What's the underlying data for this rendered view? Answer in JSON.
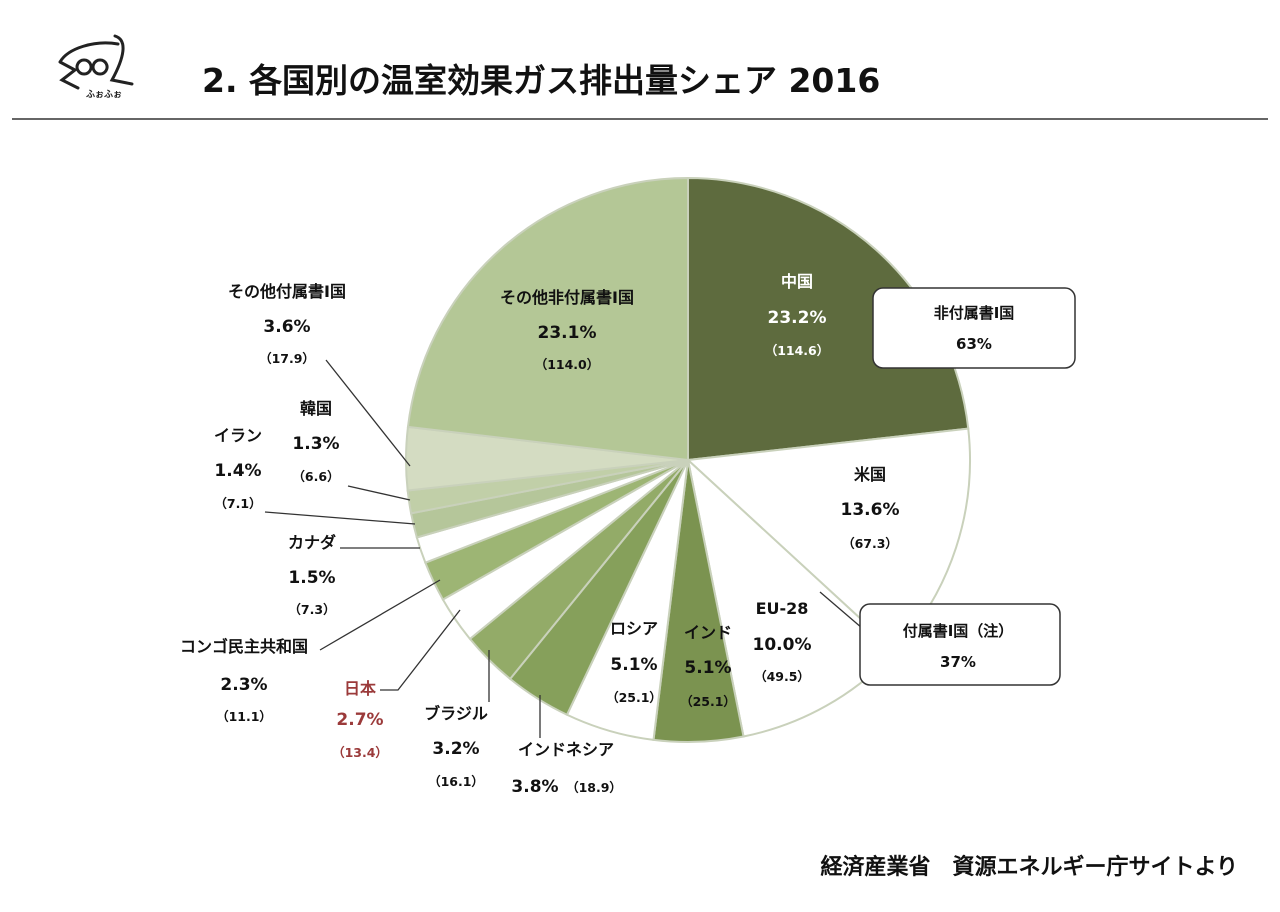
{
  "header": {
    "title": "2. 各国別の温室効果ガス排出量シェア 2016",
    "logo_text": "ふぉふぉ"
  },
  "source": "経済産業省　資源エネルギー庁サイトより",
  "chart_data": {
    "type": "pie",
    "title": "2. 各国別の温室効果ガス排出量シェア 2016",
    "slices": [
      {
        "name": "中国",
        "percent": 23.2,
        "value": 114.6,
        "pct_label": "23.2%",
        "value_label": "（114.6）",
        "color": "#5e6b3e"
      },
      {
        "name": "米国",
        "percent": 13.6,
        "value": 67.3,
        "pct_label": "13.6%",
        "value_label": "（67.3）",
        "color": "#ffffff"
      },
      {
        "name": "EU-28",
        "percent": 10.0,
        "value": 49.5,
        "pct_label": "10.0%",
        "value_label": "（49.5）",
        "color": "#ffffff"
      },
      {
        "name": "インド",
        "percent": 5.1,
        "value": 25.1,
        "pct_label": "5.1%",
        "value_label": "（25.1）",
        "color": "#7b9350"
      },
      {
        "name": "ロシア",
        "percent": 5.1,
        "value": 25.1,
        "pct_label": "5.1%",
        "value_label": "（25.1）",
        "color": "#ffffff"
      },
      {
        "name": "インドネシア",
        "percent": 3.8,
        "value": 18.9,
        "pct_label": "3.8%",
        "value_label": "（18.9）",
        "color": "#86a05b"
      },
      {
        "name": "ブラジル",
        "percent": 3.2,
        "value": 16.1,
        "pct_label": "3.2%",
        "value_label": "（16.1）",
        "color": "#93ab68"
      },
      {
        "name": "日本",
        "percent": 2.7,
        "value": 13.4,
        "pct_label": "2.7%",
        "value_label": "（13.4）",
        "color": "#ffffff",
        "highlight": "#9b3a3a"
      },
      {
        "name": "コンゴ民主共和国",
        "percent": 2.3,
        "value": 11.1,
        "pct_label": "2.3%",
        "value_label": "（11.1）",
        "color": "#9db574"
      },
      {
        "name": "カナダ",
        "percent": 1.5,
        "value": 7.3,
        "pct_label": "1.5%",
        "value_label": "（7.3）",
        "color": "#ffffff"
      },
      {
        "name": "イラン",
        "percent": 1.4,
        "value": 7.1,
        "pct_label": "1.4%",
        "value_label": "（7.1）",
        "color": "#b5c69a"
      },
      {
        "name": "韓国",
        "percent": 1.3,
        "value": 6.6,
        "pct_label": "1.3%",
        "value_label": "（6.6）",
        "color": "#c1cfa8"
      },
      {
        "name": "その他付属書Ⅰ国",
        "percent": 3.6,
        "value": 17.9,
        "pct_label": "3.6%",
        "value_label": "（17.9）",
        "color": "#d4dcc2"
      },
      {
        "name": "その他非付属書Ⅰ国",
        "percent": 23.1,
        "value": 114.0,
        "pct_label": "23.1%",
        "value_label": "（114.0）",
        "color": "#b4c796"
      }
    ],
    "groups": [
      {
        "name": "非付属書Ⅰ国",
        "pct_label": "63%"
      },
      {
        "name": "付属書Ⅰ国（注）",
        "pct_label": "37%"
      }
    ]
  }
}
